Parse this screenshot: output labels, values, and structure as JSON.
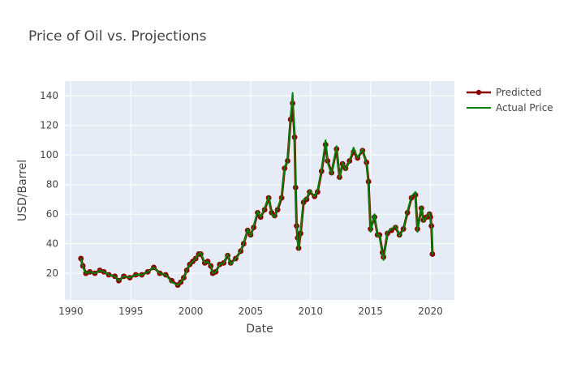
{
  "chart_data": {
    "type": "line",
    "title": "Price of Oil vs. Projections",
    "xlabel": "Date",
    "ylabel": "USD/Barrel",
    "xlim": [
      "1989-07-01",
      "2022-01-01"
    ],
    "ylim": [
      2,
      150
    ],
    "x_ticks": [
      "1990",
      "1995",
      "2000",
      "2005",
      "2010",
      "2015",
      "2020"
    ],
    "y_ticks": [
      20,
      40,
      60,
      80,
      100,
      120,
      140
    ],
    "grid": true,
    "legend": "top-right",
    "series": [
      {
        "name": "Actual Price",
        "color": "#008000",
        "marker": "none",
        "x": [
          "1990-11-01",
          "1991-01-01",
          "1991-04-01",
          "1991-08-01",
          "1992-01-01",
          "1992-06-01",
          "1992-10-01",
          "1993-03-01",
          "1993-09-01",
          "1994-01-01",
          "1994-06-01",
          "1994-12-01",
          "1995-06-01",
          "1995-12-01",
          "1996-06-01",
          "1996-12-01",
          "1997-06-01",
          "1997-12-01",
          "1998-06-01",
          "1998-12-01",
          "1999-03-01",
          "1999-06-01",
          "1999-09-01",
          "1999-12-01",
          "2000-03-01",
          "2000-06-01",
          "2000-09-01",
          "2000-11-01",
          "2001-03-01",
          "2001-06-01",
          "2001-09-01",
          "2001-11-01",
          "2002-02-01",
          "2002-06-01",
          "2002-10-01",
          "2003-02-01",
          "2003-05-01",
          "2003-10-01",
          "2004-03-01",
          "2004-06-01",
          "2004-10-01",
          "2005-01-01",
          "2005-04-01",
          "2005-08-01",
          "2005-11-01",
          "2006-03-01",
          "2006-07-01",
          "2006-10-01",
          "2007-01-01",
          "2007-04-01",
          "2007-08-01",
          "2007-11-01",
          "2008-02-01",
          "2008-05-01",
          "2008-07-01",
          "2008-09-01",
          "2008-10-01",
          "2008-11-01",
          "2008-12-01",
          "2009-01-01",
          "2009-03-01",
          "2009-06-01",
          "2009-09-01",
          "2009-12-01",
          "2010-05-01",
          "2010-08-01",
          "2010-12-01",
          "2011-04-01",
          "2011-06-01",
          "2011-10-01",
          "2012-03-01",
          "2012-06-01",
          "2012-09-01",
          "2012-12-01",
          "2013-04-01",
          "2013-08-01",
          "2013-12-01",
          "2014-05-01",
          "2014-09-01",
          "2014-11-01",
          "2015-01-01",
          "2015-05-01",
          "2015-08-01",
          "2015-10-01",
          "2016-01-01",
          "2016-02-01",
          "2016-06-01",
          "2016-10-01",
          "2017-02-01",
          "2017-06-01",
          "2017-10-01",
          "2018-02-01",
          "2018-06-01",
          "2018-10-01",
          "2018-12-01",
          "2019-04-01",
          "2019-06-01",
          "2019-09-01",
          "2019-12-01",
          "2020-01-01",
          "2020-02-01",
          "2020-03-01"
        ],
        "values": [
          30,
          24,
          20,
          21,
          20,
          22,
          21,
          19,
          18,
          15,
          18,
          17,
          19,
          19,
          21,
          24,
          20,
          19,
          14,
          12,
          14,
          17,
          22,
          26,
          28,
          30,
          33,
          34,
          27,
          28,
          25,
          20,
          21,
          26,
          27,
          33,
          26,
          30,
          35,
          40,
          50,
          45,
          52,
          62,
          58,
          64,
          72,
          60,
          58,
          64,
          72,
          92,
          95,
          125,
          142,
          110,
          75,
          52,
          42,
          36,
          48,
          70,
          70,
          76,
          72,
          76,
          90,
          110,
          95,
          87,
          106,
          84,
          95,
          90,
          96,
          105,
          98,
          104,
          94,
          80,
          48,
          60,
          45,
          46,
          32,
          29,
          48,
          50,
          52,
          45,
          50,
          62,
          72,
          75,
          48,
          65,
          55,
          58,
          61,
          57,
          52,
          33
        ]
      },
      {
        "name": "Predicted",
        "color": "#8b0000",
        "marker": "circle",
        "x": [
          "1990-11-01",
          "1991-01-01",
          "1991-04-01",
          "1991-08-01",
          "1992-01-01",
          "1992-06-01",
          "1992-10-01",
          "1993-03-01",
          "1993-09-01",
          "1994-01-01",
          "1994-06-01",
          "1994-12-01",
          "1995-06-01",
          "1995-12-01",
          "1996-06-01",
          "1996-12-01",
          "1997-06-01",
          "1997-12-01",
          "1998-06-01",
          "1998-12-01",
          "1999-03-01",
          "1999-06-01",
          "1999-09-01",
          "1999-12-01",
          "2000-03-01",
          "2000-06-01",
          "2000-09-01",
          "2000-11-01",
          "2001-03-01",
          "2001-06-01",
          "2001-09-01",
          "2001-11-01",
          "2002-02-01",
          "2002-06-01",
          "2002-10-01",
          "2003-02-01",
          "2003-05-01",
          "2003-10-01",
          "2004-03-01",
          "2004-06-01",
          "2004-10-01",
          "2005-01-01",
          "2005-04-01",
          "2005-08-01",
          "2005-11-01",
          "2006-03-01",
          "2006-07-01",
          "2006-10-01",
          "2007-01-01",
          "2007-04-01",
          "2007-08-01",
          "2007-11-01",
          "2008-02-01",
          "2008-05-01",
          "2008-07-01",
          "2008-09-01",
          "2008-10-01",
          "2008-11-01",
          "2008-12-01",
          "2009-01-01",
          "2009-03-01",
          "2009-06-01",
          "2009-09-01",
          "2009-12-01",
          "2010-05-01",
          "2010-08-01",
          "2010-12-01",
          "2011-04-01",
          "2011-06-01",
          "2011-10-01",
          "2012-03-01",
          "2012-06-01",
          "2012-09-01",
          "2012-12-01",
          "2013-04-01",
          "2013-08-01",
          "2013-12-01",
          "2014-05-01",
          "2014-09-01",
          "2014-11-01",
          "2015-01-01",
          "2015-05-01",
          "2015-08-01",
          "2015-10-01",
          "2016-01-01",
          "2016-02-01",
          "2016-06-01",
          "2016-10-01",
          "2017-02-01",
          "2017-06-01",
          "2017-10-01",
          "2018-02-01",
          "2018-06-01",
          "2018-10-01",
          "2018-12-01",
          "2019-04-01",
          "2019-06-01",
          "2019-09-01",
          "2019-12-01",
          "2020-01-01",
          "2020-02-01",
          "2020-03-01"
        ],
        "values": [
          30,
          25,
          20,
          21,
          20,
          22,
          21,
          19,
          18,
          15,
          18,
          17,
          19,
          19,
          21,
          24,
          20,
          19,
          15,
          12,
          14,
          17,
          22,
          26,
          28,
          30,
          33,
          33,
          27,
          28,
          25,
          20,
          21,
          26,
          27,
          32,
          27,
          30,
          35,
          40,
          49,
          46,
          51,
          61,
          58,
          63,
          71,
          61,
          59,
          63,
          71,
          91,
          96,
          124,
          135,
          112,
          78,
          52,
          44,
          37,
          47,
          68,
          70,
          75,
          72,
          75,
          89,
          107,
          96,
          88,
          104,
          85,
          94,
          91,
          96,
          102,
          98,
          103,
          95,
          82,
          50,
          58,
          46,
          46,
          34,
          31,
          47,
          49,
          51,
          46,
          50,
          61,
          71,
          73,
          50,
          64,
          56,
          58,
          60,
          58,
          52,
          33
        ]
      }
    ]
  }
}
